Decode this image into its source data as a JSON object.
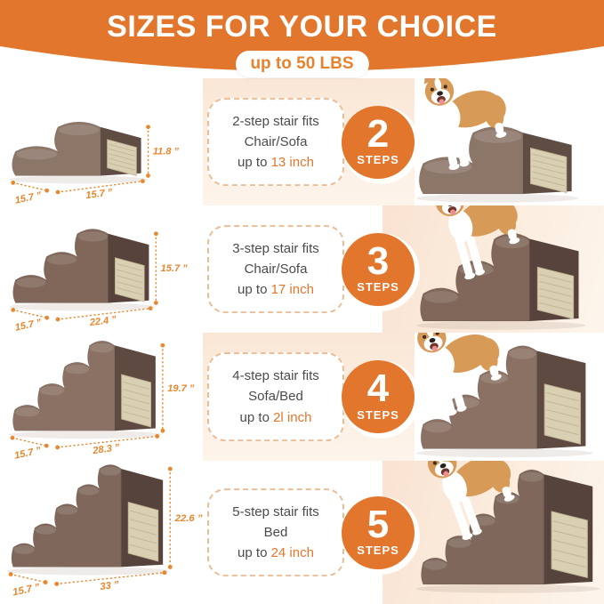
{
  "header": {
    "title": "SIZES FOR YOUR CHOICE",
    "badge": "up to 50 LBS"
  },
  "colors": {
    "banner_orange": "#E2762C",
    "badge_text_orange": "#E8832D",
    "dimension_orange": "#E8872E",
    "highlight_orange": "#E2762C",
    "peach_background": "#FAE7D8",
    "dashed_border": "#E9BE97",
    "description_text": "#4B4B4B"
  },
  "rows": [
    {
      "steps": 2,
      "number": "2",
      "steps_word": "STEPS",
      "desc_line1": "2-step stair fits",
      "desc_line2": "Chair/Sofa",
      "fits_prefix": "up to ",
      "fits_value": "13 inch",
      "dims": {
        "height": "11.8 ”",
        "width": "15.7 ”",
        "depth": "15.7 ”"
      }
    },
    {
      "steps": 3,
      "number": "3",
      "steps_word": "STEPS",
      "desc_line1": "3-step stair fits",
      "desc_line2": "Chair/Sofa",
      "fits_prefix": "up to ",
      "fits_value": "17 inch",
      "dims": {
        "height": "15.7 ”",
        "width": "15.7 ”",
        "depth": "22.4 ”"
      }
    },
    {
      "steps": 4,
      "number": "4",
      "steps_word": "STEPS",
      "desc_line1": "4-step stair fits",
      "desc_line2": "Sofa/Bed",
      "fits_prefix": "up to ",
      "fits_value": "2l inch",
      "dims": {
        "height": "19.7 ”",
        "width": "15.7 ”",
        "depth": "28.3 ”"
      }
    },
    {
      "steps": 5,
      "number": "5",
      "steps_word": "STEPS",
      "desc_line1": "5-step stair fits",
      "desc_line2": "Bed",
      "fits_prefix": "up to ",
      "fits_value": "24 inch",
      "dims": {
        "height": "22.6 ”",
        "width": "15.7 ”",
        "depth": "33 ”"
      }
    }
  ]
}
